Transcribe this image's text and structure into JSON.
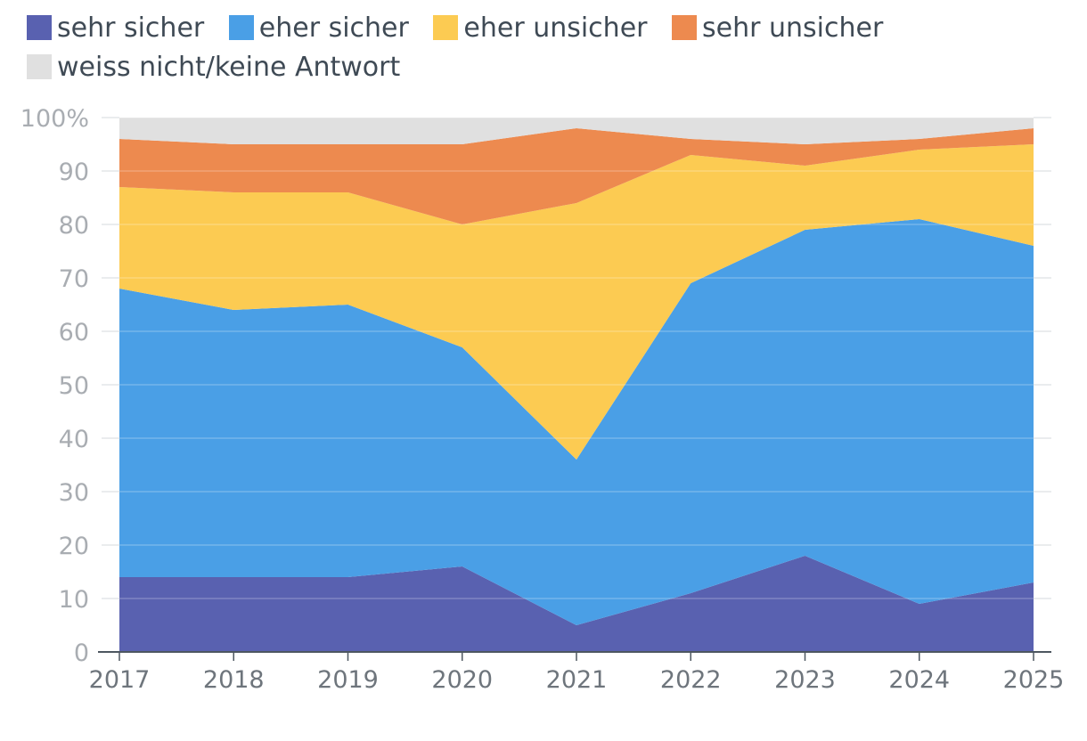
{
  "chart_data": {
    "type": "area",
    "stacked": true,
    "x": [
      "2017",
      "2018",
      "2019",
      "2020",
      "2021",
      "2022",
      "2023",
      "2024",
      "2025"
    ],
    "ylim": [
      0,
      100
    ],
    "yticks": [
      "0",
      "10",
      "20",
      "30",
      "40",
      "50",
      "60",
      "70",
      "80",
      "90",
      "100%"
    ],
    "grid": true,
    "legend_position": "top",
    "series": [
      {
        "name": "sehr sicher",
        "color": "#5961b0",
        "values": [
          14,
          14,
          14,
          16,
          5,
          11,
          18,
          9,
          13
        ]
      },
      {
        "name": "eher sicher",
        "color": "#4a9fe6",
        "values": [
          54,
          50,
          51,
          41,
          31,
          58,
          61,
          72,
          63
        ]
      },
      {
        "name": "eher unsicher",
        "color": "#fccb52",
        "values": [
          19,
          22,
          21,
          23,
          48,
          24,
          12,
          13,
          19
        ]
      },
      {
        "name": "sehr unsicher",
        "color": "#ed8a4f",
        "values": [
          9,
          9,
          9,
          15,
          14,
          3,
          4,
          2,
          3
        ]
      },
      {
        "name": "weiss nicht/keine Antwort",
        "color": "#e0e0e0",
        "values": [
          4,
          5,
          5,
          5,
          2,
          4,
          5,
          4,
          2
        ]
      }
    ]
  }
}
